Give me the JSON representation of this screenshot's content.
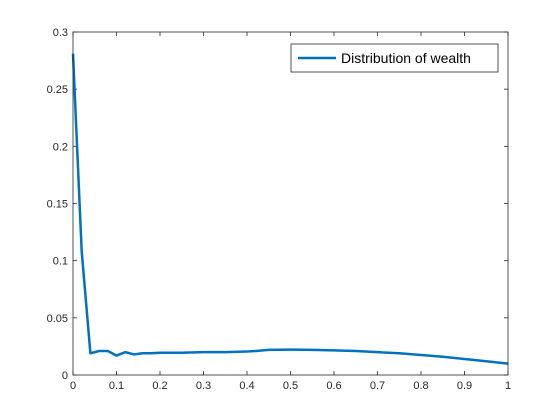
{
  "chart_data": {
    "type": "line",
    "title": "",
    "xlabel": "",
    "ylabel": "",
    "xlim": [
      0,
      1
    ],
    "ylim": [
      0,
      0.3
    ],
    "grid": false,
    "legend_position": "top-right",
    "x_ticks": [
      0,
      0.1,
      0.2,
      0.3,
      0.4,
      0.5,
      0.6,
      0.7,
      0.8,
      0.9,
      1
    ],
    "x_tick_labels": [
      "0",
      "0.1",
      "0.2",
      "0.3",
      "0.4",
      "0.5",
      "0.6",
      "0.7",
      "0.8",
      "0.9",
      "1"
    ],
    "y_ticks": [
      0,
      0.05,
      0.1,
      0.15,
      0.2,
      0.25,
      0.3
    ],
    "y_tick_labels": [
      "0",
      "0.05",
      "0.1",
      "0.15",
      "0.2",
      "0.25",
      "0.3"
    ],
    "series": [
      {
        "name": "Distribution of wealth",
        "color": "#0072BD",
        "x": [
          0,
          0.02,
          0.04,
          0.06,
          0.08,
          0.1,
          0.12,
          0.14,
          0.16,
          0.18,
          0.2,
          0.22,
          0.25,
          0.3,
          0.35,
          0.4,
          0.42,
          0.45,
          0.5,
          0.55,
          0.6,
          0.65,
          0.7,
          0.75,
          0.8,
          0.85,
          0.9,
          0.95,
          1.0
        ],
        "y": [
          0.281,
          0.108,
          0.019,
          0.021,
          0.021,
          0.017,
          0.02,
          0.018,
          0.019,
          0.019,
          0.0195,
          0.0195,
          0.0195,
          0.02,
          0.02,
          0.0205,
          0.021,
          0.022,
          0.0222,
          0.022,
          0.0215,
          0.021,
          0.02,
          0.019,
          0.0175,
          0.016,
          0.014,
          0.012,
          0.01
        ]
      }
    ]
  }
}
